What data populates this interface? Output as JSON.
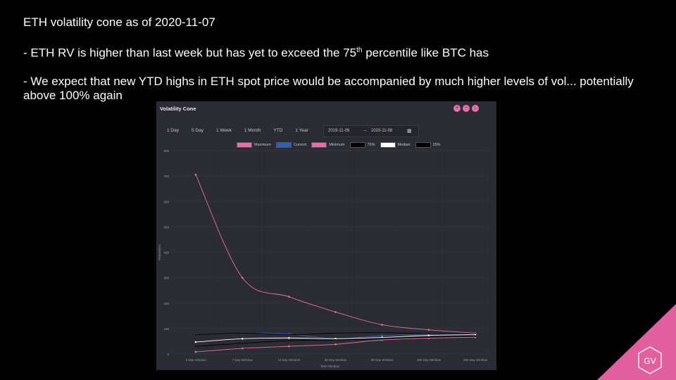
{
  "slide": {
    "line1": "ETH volatility cone as of 2020-11-07",
    "line2_pre": "- ETH RV is higher than last week but has yet to exceed the 75",
    "line2_sup": "th",
    "line2_post": " percentile like BTC has",
    "line3": "- We expect that new YTD highs in ETH spot price would be accompanied by much higher levels of vol... potentially above 100% again",
    "logo_text": "GV"
  },
  "panel": {
    "title": "Volatility Cone",
    "icons": [
      "zoom-in-icon",
      "zoom-out-icon",
      "download-icon"
    ],
    "ranges": [
      "1 Day",
      "5 Day",
      "1 Week",
      "1 Month",
      "YTD",
      "1 Year"
    ],
    "date_from": "2019-11-09",
    "date_sep": "–",
    "date_to": "2020-11-08"
  },
  "colors": {
    "maximum": "#e56fa8",
    "current": "#2f5fb8",
    "minimum": "#e56fa8",
    "p75": "#000000",
    "median": "#ffffff",
    "p25": "#000000",
    "accent": "#e3609f"
  },
  "chart_data": {
    "type": "line",
    "title": "",
    "xlabel": "Time Window",
    "ylabel": "Percent(%)",
    "ylim": [
      0,
      800
    ],
    "yticks": [
      0,
      100,
      200,
      300,
      400,
      500,
      600,
      700,
      800
    ],
    "grid": true,
    "legend_position": "top",
    "categories": [
      "1 Day Window",
      "7 Day Window",
      "14 Day Window",
      "30 Day Window",
      "90 Day Window",
      "180 Day Window",
      "365 Day Window"
    ],
    "series": [
      {
        "name": "Maximum",
        "color_key": "maximum",
        "values": [
          705,
          300,
          225,
          165,
          115,
          95,
          82
        ]
      },
      {
        "name": "Current",
        "color_key": "current",
        "values": [
          75,
          82,
          78,
          60,
          72,
          78,
          78
        ]
      },
      {
        "name": "Minimum",
        "color_key": "minimum",
        "values": [
          8,
          22,
          30,
          38,
          55,
          62,
          66
        ]
      },
      {
        "name": "75%",
        "color_key": "p75",
        "values": [
          75,
          82,
          76,
          82,
          84,
          80,
          80
        ]
      },
      {
        "name": "Median",
        "color_key": "median",
        "values": [
          47,
          60,
          63,
          60,
          65,
          73,
          76
        ]
      },
      {
        "name": "25%",
        "color_key": "p25",
        "values": [
          30,
          42,
          52,
          55,
          60,
          66,
          70
        ]
      }
    ]
  }
}
